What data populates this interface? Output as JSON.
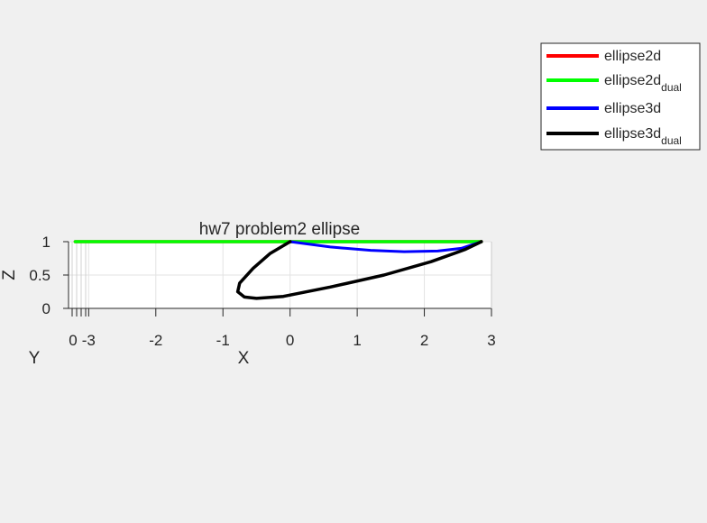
{
  "chart_data": {
    "type": "line",
    "title": "hw7 problem2 ellipse",
    "xlabel": "X",
    "ylabel": "Y",
    "zlabel": "Z",
    "xlim": [
      -3.3,
      3
    ],
    "zlim": [
      0,
      1
    ],
    "x_ticks": [
      -3,
      -2,
      -1,
      0,
      1,
      2,
      3
    ],
    "z_ticks": [
      0,
      0.5,
      1
    ],
    "z_tick_labels": [
      "0",
      "0.5",
      "1"
    ],
    "y_ticks": [
      0
    ],
    "grid": true,
    "legend_position": "top-right",
    "series": [
      {
        "name": "ellipse2d",
        "name_sub": "",
        "color": "#ff0000",
        "points": [
          [
            -3.2,
            1
          ],
          [
            2.85,
            1
          ]
        ]
      },
      {
        "name": "ellipse2d",
        "name_sub": "dual",
        "color": "#00ff00",
        "points": [
          [
            -3.2,
            1
          ],
          [
            2.85,
            1
          ]
        ]
      },
      {
        "name": "ellipse3d",
        "name_sub": "",
        "color": "#0000ff",
        "points": [
          [
            0,
            1
          ],
          [
            0.6,
            0.92
          ],
          [
            1.2,
            0.87
          ],
          [
            1.7,
            0.85
          ],
          [
            2.2,
            0.86
          ],
          [
            2.55,
            0.9
          ],
          [
            2.85,
            1
          ]
        ]
      },
      {
        "name": "ellipse3d",
        "name_sub": "dual",
        "color": "#000000",
        "points": [
          [
            0,
            1
          ],
          [
            -0.3,
            0.82
          ],
          [
            -0.55,
            0.6
          ],
          [
            -0.75,
            0.38
          ],
          [
            -0.78,
            0.25
          ],
          [
            -0.68,
            0.17
          ],
          [
            -0.5,
            0.15
          ],
          [
            -0.1,
            0.18
          ],
          [
            0.6,
            0.32
          ],
          [
            1.4,
            0.5
          ],
          [
            2.1,
            0.7
          ],
          [
            2.6,
            0.88
          ],
          [
            2.85,
            1
          ]
        ]
      }
    ]
  }
}
